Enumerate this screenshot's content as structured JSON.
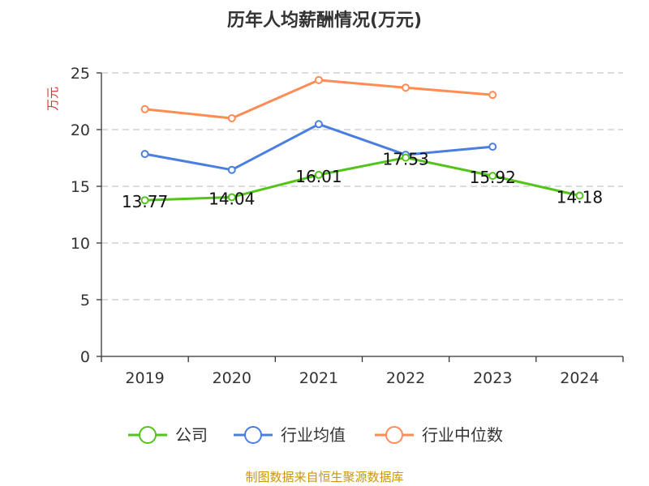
{
  "chart_data": {
    "type": "line",
    "title": "历年人均薪酬情况(万元)",
    "ylabel": "万元",
    "xlabel": "",
    "categories": [
      "2019",
      "2020",
      "2021",
      "2022",
      "2023",
      "2024"
    ],
    "ylim": [
      0,
      25
    ],
    "yticks": [
      0,
      5,
      10,
      15,
      20,
      25
    ],
    "grid": true,
    "legend_position": "bottom",
    "series": [
      {
        "name": "公司",
        "color": "#52c41a",
        "values": [
          13.77,
          14.04,
          16.01,
          17.53,
          15.92,
          14.18
        ],
        "labels": [
          "13.77",
          "14.04",
          "16.01",
          "17.53",
          "15.92",
          "14.18"
        ]
      },
      {
        "name": "行业均值",
        "color": "#4a7fe0",
        "values": [
          17.85,
          16.45,
          20.48,
          17.78,
          18.49,
          null
        ]
      },
      {
        "name": "行业中位数",
        "color": "#ff8c55",
        "values": [
          21.8,
          21.0,
          24.37,
          23.7,
          23.06,
          null
        ]
      }
    ]
  },
  "source": "制图数据来自恒生聚源数据库"
}
